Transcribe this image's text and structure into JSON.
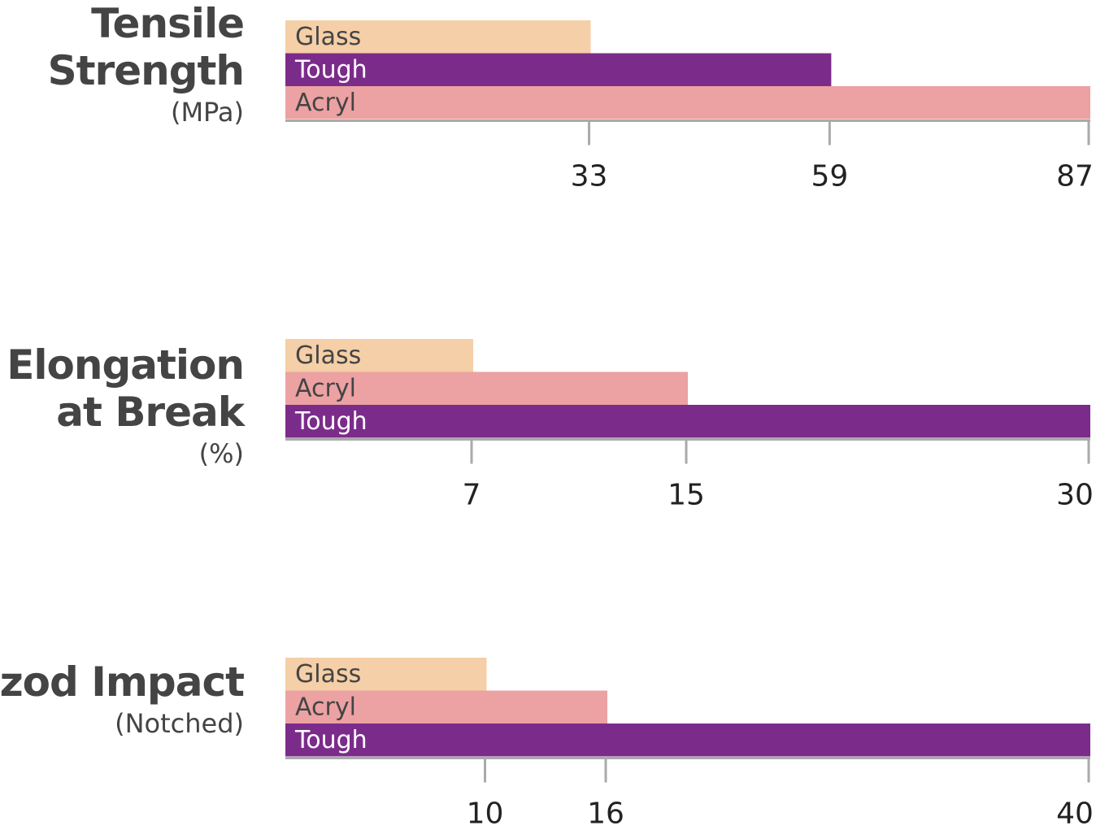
{
  "chart_data": [
    {
      "type": "bar",
      "orientation": "horizontal",
      "title": "Tensile Strength",
      "unit_label": "(MPa)",
      "categories": [
        "Glass",
        "Tough",
        "Acryl"
      ],
      "values": [
        33,
        59,
        87
      ],
      "tick_labels": [
        "33",
        "59",
        "87"
      ]
    },
    {
      "type": "bar",
      "orientation": "horizontal",
      "title": "Elongation at Break",
      "title_lines": [
        "Elongation",
        "at Break"
      ],
      "unit_label": "(%)",
      "categories": [
        "Glass",
        "Acryl",
        "Tough"
      ],
      "values": [
        7,
        15,
        30
      ],
      "tick_labels": [
        "7",
        "15",
        "30"
      ]
    },
    {
      "type": "bar",
      "orientation": "horizontal",
      "title": "Izod Impact",
      "unit_label": "(Notched)",
      "categories": [
        "Glass",
        "Acryl",
        "Tough"
      ],
      "values": [
        10,
        16,
        40
      ],
      "tick_labels": [
        "10",
        "16",
        "40"
      ]
    }
  ],
  "colors": {
    "Glass": "#F5CFA7",
    "Tough": "#7B2C8A",
    "Acryl": "#ECA1A3",
    "axis": "#AAAAAA",
    "text": "#444444"
  }
}
